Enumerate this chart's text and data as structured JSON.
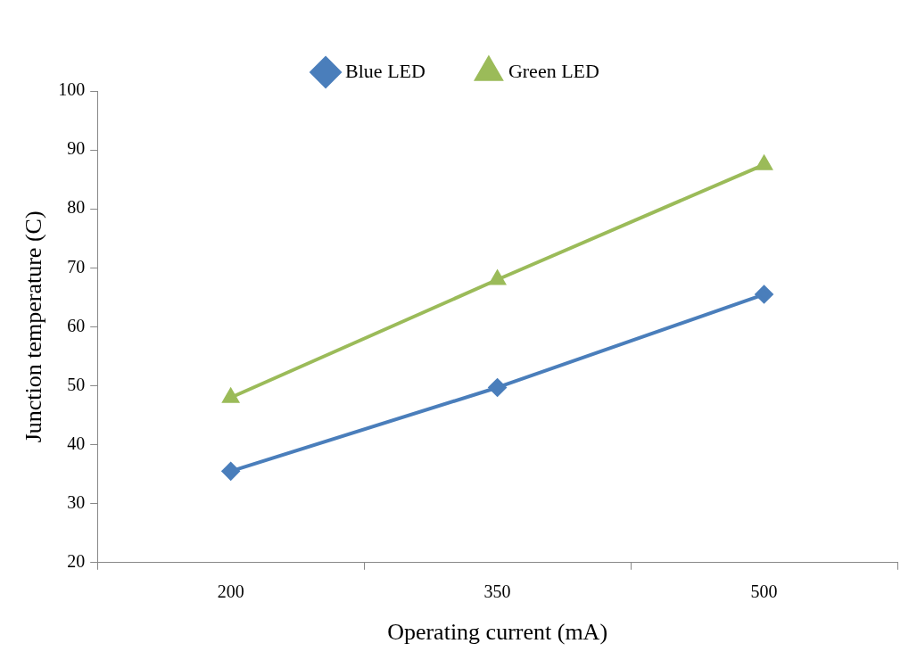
{
  "chart_data": {
    "type": "line",
    "xlabel": "Operating current (mA)",
    "ylabel": "Junction temperature (C)",
    "categories": [
      "200",
      "350",
      "500"
    ],
    "series": [
      {
        "name": "Blue LED",
        "color": "#4a7ebb",
        "values": [
          35.5,
          49.7,
          65.5
        ],
        "marker": "diamond"
      },
      {
        "name": "Green LED",
        "color": "#9bbb59",
        "values": [
          48,
          68,
          87.5
        ],
        "marker": "triangle"
      }
    ],
    "ylim": [
      20,
      100
    ],
    "yticks": [
      20,
      30,
      40,
      50,
      60,
      70,
      80,
      90,
      100
    ],
    "grid": false,
    "legend": "top",
    "line_style": "solid"
  }
}
